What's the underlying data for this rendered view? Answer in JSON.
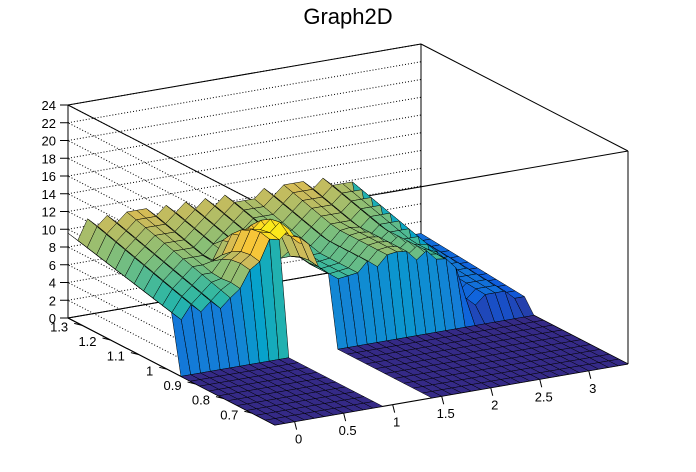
{
  "chart_data": {
    "type": "surface",
    "title": "Graph2D",
    "xlabel": "",
    "ylabel": "",
    "zlabel": "",
    "x_ticks": [
      "0",
      "0.5",
      "1",
      "1.5",
      "2",
      "2.5",
      "3"
    ],
    "y_ticks": [
      "0.7",
      "0.8",
      "0.9",
      "1",
      "1.1",
      "1.2",
      "1.3"
    ],
    "z_ticks": [
      "0",
      "2",
      "4",
      "6",
      "8",
      "10",
      "12",
      "14",
      "16",
      "18",
      "20",
      "22",
      "24"
    ],
    "xlim": [
      -0.2,
      3.4
    ],
    "ylim": [
      0.62,
      1.35
    ],
    "zlim": [
      0,
      24
    ],
    "grid": true,
    "palette": "kBird (dark blue to yellow)",
    "colors": [
      "#352a87",
      "#0f5cdd",
      "#1481d6",
      "#06a4ca",
      "#2eb7a4",
      "#87bf77",
      "#d1bb59",
      "#fec832",
      "#f9fb0e"
    ],
    "surface": {
      "description_values": "front wall rows rise from 0 to ~10 at y~1.3; peak ~13.5 near x~0.9-1.0, y~1.0; plateau ~7.5-9 for x 1.5-2.5; floor 0 elsewhere",
      "peak_z": 13.5,
      "base_z": 0
    }
  }
}
